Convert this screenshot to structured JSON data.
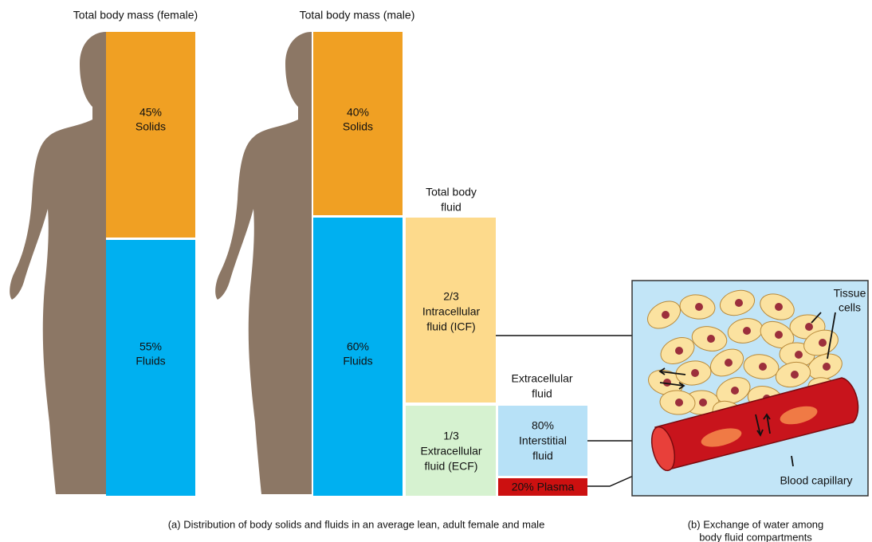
{
  "panel_a": {
    "female": {
      "title": "Total body mass (female)",
      "solids": [
        "45%",
        "Solids"
      ],
      "fluids": [
        "55%",
        "Fluids"
      ]
    },
    "male": {
      "title": "Total body mass (male)",
      "solids": [
        "40%",
        "Solids"
      ],
      "fluids": [
        "60%",
        "Fluids"
      ]
    },
    "total_body_fluid": {
      "title": [
        "Total body",
        "fluid"
      ],
      "icf": [
        "2/3",
        "Intracellular",
        "fluid (ICF)"
      ],
      "ecf": [
        "1/3",
        "Extracellular",
        "fluid (ECF)"
      ]
    },
    "extracellular_fluid": {
      "title": [
        "Extracellular",
        "fluid"
      ],
      "interstitial": [
        "80%",
        "Interstitial",
        "fluid"
      ],
      "plasma": "20% Plasma"
    },
    "caption": "(a) Distribution of body solids and fluids in an average lean, adult female and male"
  },
  "panel_b": {
    "tissue_cells": [
      "Tissue",
      "cells"
    ],
    "blood_capillary": "Blood capillary",
    "caption": [
      "(b) Exchange of water among",
      "body fluid compartments"
    ]
  }
}
